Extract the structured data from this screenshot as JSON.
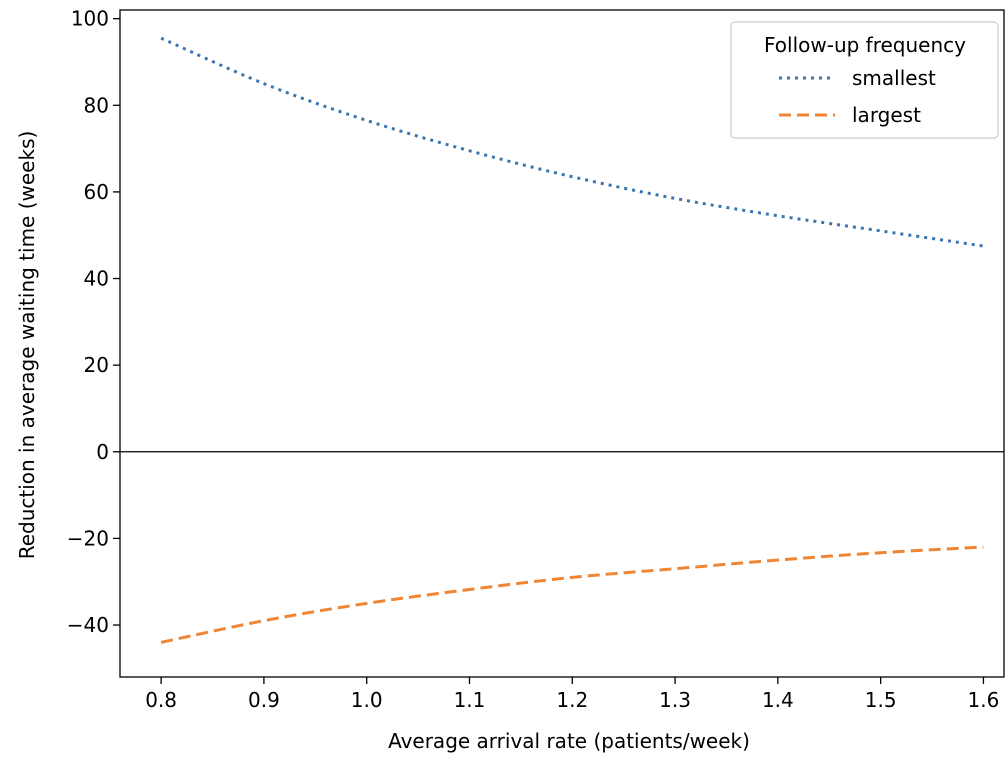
{
  "chart_data": {
    "type": "line",
    "xlabel": "Average arrival rate (patients/week)",
    "ylabel": "Reduction in average waiting time (weeks)",
    "xlim": [
      0.76,
      1.62
    ],
    "ylim": [
      -52,
      102
    ],
    "xticks": [
      0.8,
      0.9,
      1.0,
      1.1,
      1.2,
      1.3,
      1.4,
      1.5,
      1.6
    ],
    "xtick_labels": [
      "0.8",
      "0.9",
      "1.0",
      "1.1",
      "1.2",
      "1.3",
      "1.4",
      "1.5",
      "1.6"
    ],
    "yticks": [
      -40,
      -20,
      0,
      20,
      40,
      60,
      80,
      100
    ],
    "ytick_labels": [
      "−40",
      "−20",
      "0",
      "20",
      "40",
      "60",
      "80",
      "100"
    ],
    "zero_line": true,
    "grid": false,
    "legend": {
      "title": "Follow-up frequency",
      "position": "top-right"
    },
    "x": [
      0.8,
      0.9,
      1.0,
      1.1,
      1.2,
      1.3,
      1.4,
      1.5,
      1.6
    ],
    "series": [
      {
        "name": "smallest",
        "style": "dotted",
        "color": "#3a75b0",
        "values": [
          95.5,
          85.0,
          76.5,
          69.5,
          63.5,
          58.5,
          54.5,
          51.0,
          47.5
        ]
      },
      {
        "name": "largest",
        "style": "dashed",
        "color": "#ef8636",
        "values": [
          -44.0,
          -39.0,
          -35.0,
          -31.8,
          -29.0,
          -27.0,
          -25.0,
          -23.3,
          -22.0
        ]
      }
    ]
  }
}
